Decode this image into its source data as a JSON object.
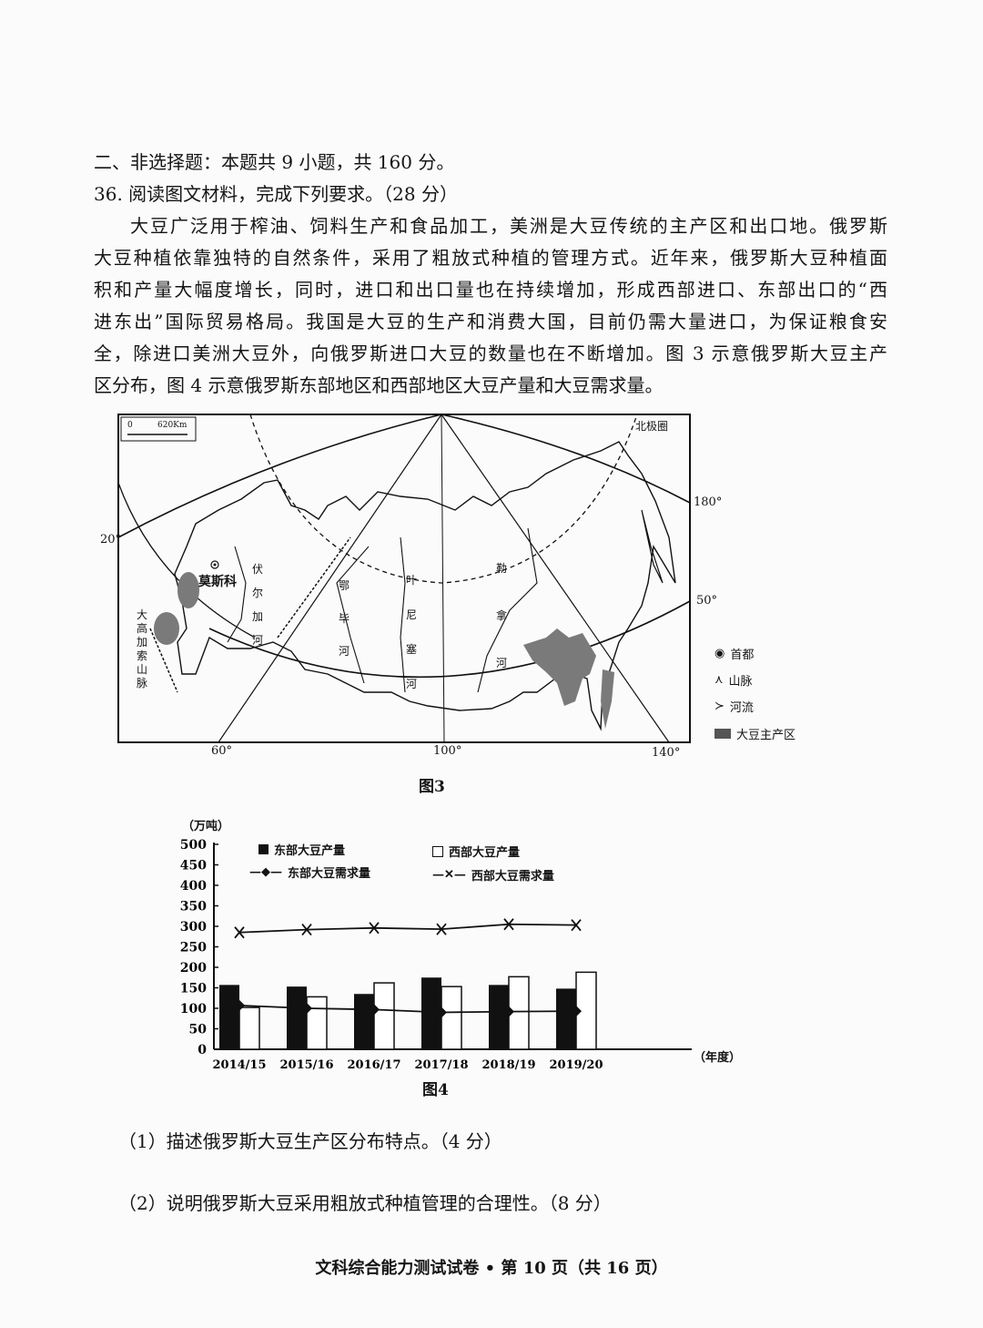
{
  "section_heading": "二、非选择题：本题共 9 小题，共 160 分。",
  "question_heading": "36. 阅读图文材料，完成下列要求。（28 分）",
  "passage_lines": [
    "大豆广泛用于榨油、饲料生产和食品加工，美洲是大豆传统的主产区和出口地。俄罗斯",
    "大豆种植依靠独特的自然条件，采用了粗放式种植的管理方式。近年来，俄罗斯大豆种植面",
    "积和产量大幅度增长，同时，进口和出口量也在持续增加，形成西部进口、东部出口的“西",
    "进东出”国际贸易格局。我国是大豆的生产和消费大国，目前仍需大量进口，为保证粮食安",
    "全，除进口美洲大豆外，向俄罗斯进口大豆的数量也在不断增加。图 3 示意俄罗斯大豆主产",
    "区分布，图 4 示意俄罗斯东部地区和西部地区大豆产量和大豆需求量。"
  ],
  "map": {
    "caption": "图3",
    "scale_label": "620Km",
    "scale_zero": "0",
    "arctic_circle_label": "北极圈",
    "longitude_labels": [
      "20°",
      "60°",
      "100°",
      "140°",
      "180°"
    ],
    "latitude_label": "50°",
    "capital": "莫斯科",
    "rivers": [
      "伏尔加河",
      "鄂毕河",
      "叶尼塞河",
      "勒拿河"
    ],
    "mountain": "大高加索山脉",
    "legend": [
      {
        "icon": "capital-dot-icon",
        "label": "首都"
      },
      {
        "icon": "mountain-icon",
        "label": "山脉"
      },
      {
        "icon": "river-icon",
        "label": "河流"
      },
      {
        "icon": "soybean-area-icon",
        "label": "大豆主产区"
      }
    ],
    "soy_color": "#7a7a7a"
  },
  "chart_data": {
    "type": "bar",
    "title": "",
    "caption": "图4",
    "ylabel": "（万吨）",
    "xlabel": "（年度）",
    "ylim": [
      0,
      500
    ],
    "yticks": [
      0,
      50,
      100,
      150,
      200,
      250,
      300,
      350,
      400,
      450,
      500
    ],
    "categories": [
      "2014/15",
      "2015/16",
      "2016/17",
      "2017/18",
      "2018/19",
      "2019/20"
    ],
    "series": [
      {
        "name": "东部大豆产量",
        "kind": "bar",
        "color": "#111111",
        "values": [
          157,
          153,
          135,
          175,
          157,
          148
        ]
      },
      {
        "name": "西部大豆产量",
        "kind": "bar",
        "color": "#ffffff",
        "values": [
          102,
          128,
          162,
          153,
          177,
          188
        ]
      },
      {
        "name": "东部大豆需求量",
        "kind": "line",
        "marker": "diamond",
        "values": [
          107,
          100,
          97,
          90,
          92,
          93
        ]
      },
      {
        "name": "西部大豆需求量",
        "kind": "line",
        "marker": "x",
        "values": [
          285,
          292,
          296,
          293,
          305,
          303
        ]
      }
    ],
    "legend_placement": "top"
  },
  "questions": [
    "（1）描述俄罗斯大豆生产区分布特点。（4 分）",
    "（2）说明俄罗斯大豆采用粗放式种植管理的合理性。（8 分）"
  ],
  "footer": "文科综合能力测试试卷 • 第 10 页（共 16 页）"
}
